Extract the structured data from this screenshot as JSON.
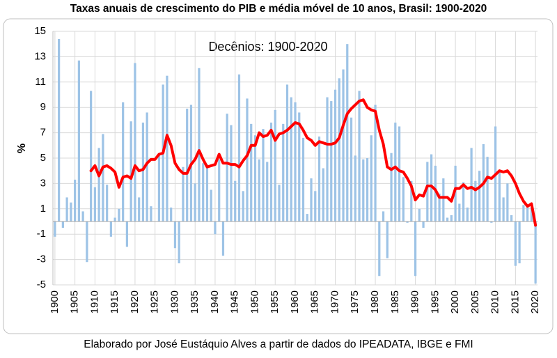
{
  "chart_data": {
    "type": "bar",
    "title": "Taxas anuais de crescimento do PIB e média móvel de 10 anos, Brasil: 1900-2020",
    "annotation": "Decênios: 1900-2020",
    "ylabel": "%",
    "footer": "Elaborado por José Eustáquio Alves a partir de dados do IPEADATA, IBGE e FMI",
    "x": [
      1900,
      1901,
      1902,
      1903,
      1904,
      1905,
      1906,
      1907,
      1908,
      1909,
      1910,
      1911,
      1912,
      1913,
      1914,
      1915,
      1916,
      1917,
      1918,
      1919,
      1920,
      1921,
      1922,
      1923,
      1924,
      1925,
      1926,
      1927,
      1928,
      1929,
      1930,
      1931,
      1932,
      1933,
      1934,
      1935,
      1936,
      1937,
      1938,
      1939,
      1940,
      1941,
      1942,
      1943,
      1944,
      1945,
      1946,
      1947,
      1948,
      1949,
      1950,
      1951,
      1952,
      1953,
      1954,
      1955,
      1956,
      1957,
      1958,
      1959,
      1960,
      1961,
      1962,
      1963,
      1964,
      1965,
      1966,
      1967,
      1968,
      1969,
      1970,
      1971,
      1972,
      1973,
      1974,
      1975,
      1976,
      1977,
      1978,
      1979,
      1980,
      1981,
      1982,
      1983,
      1984,
      1985,
      1986,
      1987,
      1988,
      1989,
      1990,
      1991,
      1992,
      1993,
      1994,
      1995,
      1996,
      1997,
      1998,
      1999,
      2000,
      2001,
      2002,
      2003,
      2004,
      2005,
      2006,
      2007,
      2008,
      2009,
      2010,
      2011,
      2012,
      2013,
      2014,
      2015,
      2016,
      2017,
      2018,
      2019,
      2020
    ],
    "series": [
      {
        "type": "bar",
        "color": "#9dc3e6",
        "values": [
          -1.2,
          14.4,
          -0.5,
          1.9,
          1.5,
          3.3,
          12.7,
          0.8,
          -3.2,
          10.3,
          2.7,
          5.8,
          6.9,
          2.9,
          -1.2,
          0.3,
          1.0,
          9.4,
          -2.0,
          7.9,
          12.5,
          1.9,
          7.8,
          8.6,
          1.2,
          0.0,
          5.2,
          10.8,
          11.5,
          1.1,
          -2.1,
          -3.3,
          4.3,
          8.9,
          9.2,
          3.0,
          12.1,
          4.6,
          4.5,
          2.5,
          -1.0,
          4.9,
          -2.7,
          8.5,
          7.6,
          3.2,
          11.6,
          2.4,
          9.7,
          7.7,
          6.8,
          4.9,
          7.3,
          4.7,
          7.8,
          8.8,
          2.9,
          7.7,
          10.8,
          9.8,
          9.4,
          8.6,
          6.6,
          0.6,
          3.4,
          2.4,
          6.7,
          4.2,
          9.8,
          9.5,
          10.4,
          11.3,
          12.0,
          14.0,
          8.2,
          5.2,
          10.3,
          4.9,
          5.0,
          6.8,
          9.2,
          -4.3,
          0.8,
          -2.9,
          5.4,
          7.8,
          7.5,
          3.5,
          -0.1,
          3.2,
          -4.3,
          1.0,
          -0.5,
          4.7,
          5.3,
          4.4,
          2.2,
          3.4,
          0.3,
          0.5,
          4.4,
          1.4,
          3.1,
          1.1,
          5.8,
          3.2,
          4.0,
          6.1,
          5.1,
          -0.1,
          7.5,
          4.0,
          1.9,
          3.0,
          0.5,
          -3.5,
          -3.3,
          1.3,
          1.3,
          1.1,
          -4.9
        ]
      },
      {
        "type": "line",
        "color": "#ff0000",
        "values": [
          null,
          null,
          null,
          null,
          null,
          null,
          null,
          null,
          null,
          4.0,
          4.4,
          3.6,
          4.3,
          4.4,
          4.2,
          3.9,
          2.7,
          3.5,
          3.6,
          3.4,
          4.4,
          4.0,
          4.1,
          4.6,
          4.9,
          4.9,
          5.3,
          5.4,
          6.8,
          6.0,
          4.6,
          4.1,
          3.8,
          3.8,
          4.5,
          4.9,
          5.6,
          4.9,
          4.3,
          4.4,
          4.5,
          5.3,
          4.6,
          4.6,
          4.5,
          4.5,
          4.3,
          4.8,
          5.2,
          6.0,
          6.0,
          7.0,
          6.7,
          6.8,
          7.2,
          6.4,
          6.9,
          7.0,
          7.2,
          7.5,
          7.8,
          7.7,
          7.2,
          6.6,
          6.4,
          6.0,
          6.3,
          6.2,
          6.1,
          6.1,
          6.2,
          6.6,
          7.6,
          8.5,
          8.9,
          9.2,
          9.5,
          9.6,
          9.0,
          8.8,
          8.7,
          7.2,
          6.1,
          4.3,
          4.1,
          4.3,
          4.0,
          3.9,
          3.4,
          2.8,
          1.7,
          2.1,
          2.0,
          2.8,
          2.8,
          2.5,
          1.9,
          1.9,
          1.9,
          1.6,
          2.6,
          2.6,
          2.9,
          2.6,
          2.7,
          2.5,
          2.7,
          3.0,
          3.5,
          3.4,
          3.7,
          4.0,
          3.9,
          4.0,
          3.6,
          3.0,
          2.2,
          1.6,
          1.2,
          1.4,
          -0.3
        ]
      }
    ],
    "xlim": [
      1899.5,
      2020.5
    ],
    "xticks": [
      1900,
      1905,
      1910,
      1915,
      1920,
      1925,
      1930,
      1935,
      1940,
      1945,
      1950,
      1955,
      1960,
      1965,
      1970,
      1975,
      1980,
      1985,
      1990,
      1995,
      2000,
      2005,
      2010,
      2015,
      2020
    ],
    "ylim": [
      -5,
      15
    ],
    "yticks": [
      -5,
      -3,
      -1,
      1,
      3,
      5,
      7,
      9,
      11,
      13,
      15
    ],
    "grid": true
  }
}
